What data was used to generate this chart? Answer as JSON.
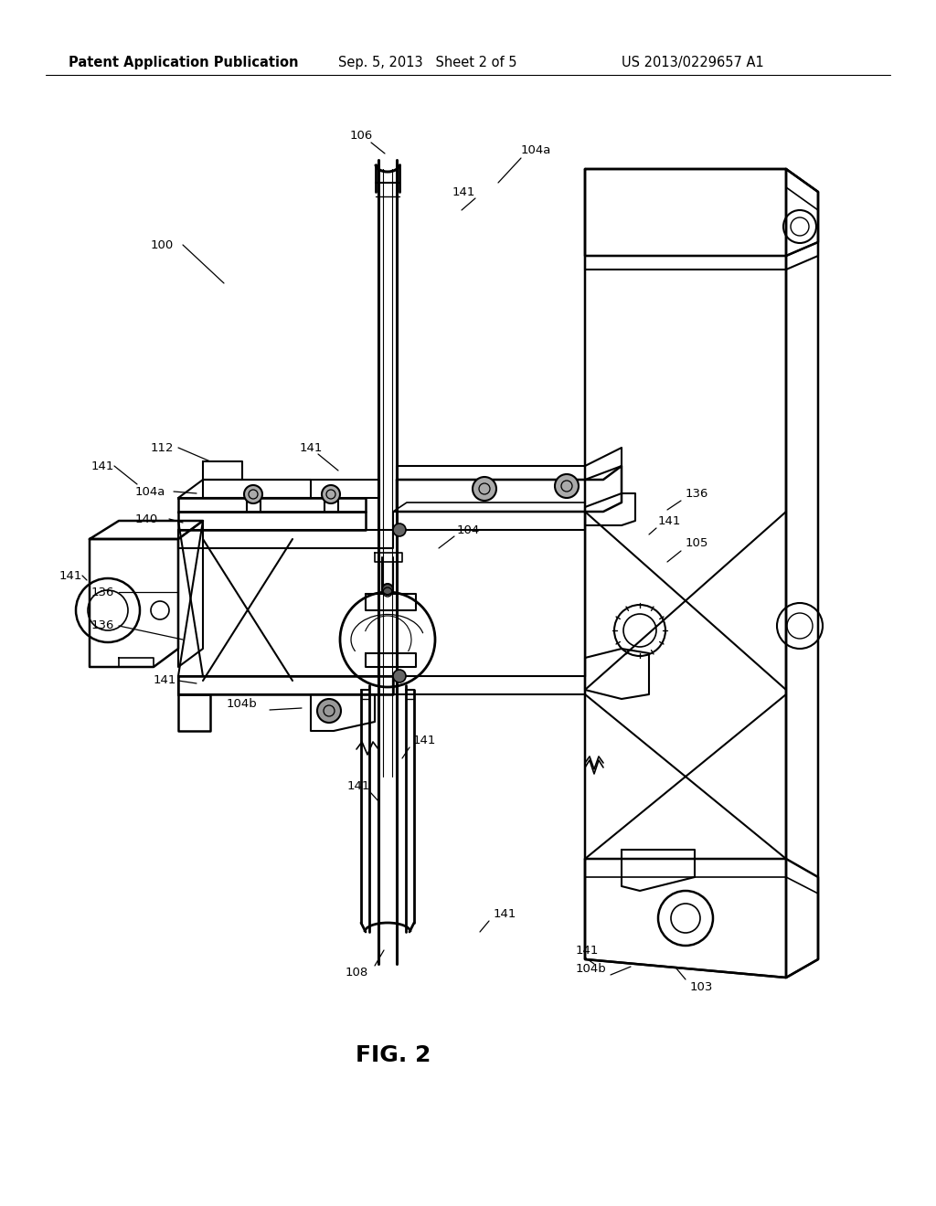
{
  "title": "FIG. 2",
  "header_left": "Patent Application Publication",
  "header_center": "Sep. 5, 2013   Sheet 2 of 5",
  "header_right": "US 2013/0229657 A1",
  "bg_color": "#ffffff",
  "line_color": "#000000",
  "text_color": "#000000",
  "header_font_size": 10.5,
  "label_font_size": 9.5,
  "title_font_size": 18
}
